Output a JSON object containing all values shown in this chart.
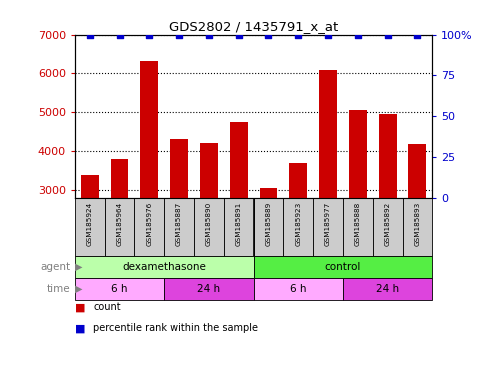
{
  "title": "GDS2802 / 1435791_x_at",
  "samples": [
    "GSM185924",
    "GSM185964",
    "GSM185976",
    "GSM185887",
    "GSM185890",
    "GSM185891",
    "GSM185889",
    "GSM185923",
    "GSM185977",
    "GSM185888",
    "GSM185892",
    "GSM185893"
  ],
  "counts": [
    3380,
    3800,
    6320,
    4320,
    4200,
    4760,
    3060,
    3700,
    6100,
    5060,
    4960,
    4180
  ],
  "percentile_ranks": [
    100,
    100,
    100,
    100,
    100,
    100,
    100,
    100,
    100,
    100,
    100,
    100
  ],
  "bar_color": "#cc0000",
  "dot_color": "#0000cc",
  "ylim_left": [
    2800,
    7000
  ],
  "ylim_right": [
    0,
    100
  ],
  "yticks_left": [
    3000,
    4000,
    5000,
    6000,
    7000
  ],
  "yticks_right": [
    0,
    25,
    50,
    75,
    100
  ],
  "agent_groups": [
    {
      "label": "dexamethasone",
      "start": 0,
      "end": 6,
      "color": "#bbffaa"
    },
    {
      "label": "control",
      "start": 6,
      "end": 12,
      "color": "#55ee44"
    }
  ],
  "time_groups": [
    {
      "label": "6 h",
      "start": 0,
      "end": 3,
      "color": "#ffaaff"
    },
    {
      "label": "24 h",
      "start": 3,
      "end": 6,
      "color": "#dd44dd"
    },
    {
      "label": "6 h",
      "start": 6,
      "end": 9,
      "color": "#ffaaff"
    },
    {
      "label": "24 h",
      "start": 9,
      "end": 12,
      "color": "#dd44dd"
    }
  ],
  "ytick_left_color": "#cc0000",
  "ytick_right_color": "#0000cc",
  "grid_color": "#000000",
  "background_color": "#ffffff",
  "bar_width": 0.6,
  "sample_box_color": "#cccccc",
  "legend_items": [
    {
      "color": "#cc0000",
      "label": "count"
    },
    {
      "color": "#0000cc",
      "label": "percentile rank within the sample"
    }
  ]
}
